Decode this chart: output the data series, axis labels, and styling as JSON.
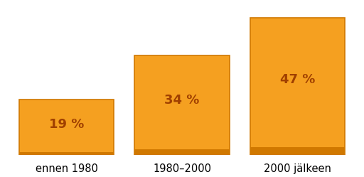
{
  "categories": [
    "ennen 1980",
    "1980–2000",
    "2000 jälkeen"
  ],
  "values": [
    19,
    34,
    47
  ],
  "labels": [
    "19 %",
    "34 %",
    "47 %"
  ],
  "bar_color": "#F5A020",
  "bar_edge_color": "#D07800",
  "text_color": "#A04000",
  "background_color": "#FFFFFF",
  "ylim": [
    0,
    52
  ],
  "bar_width": 0.82,
  "label_fontsize": 13,
  "tick_fontsize": 10.5
}
